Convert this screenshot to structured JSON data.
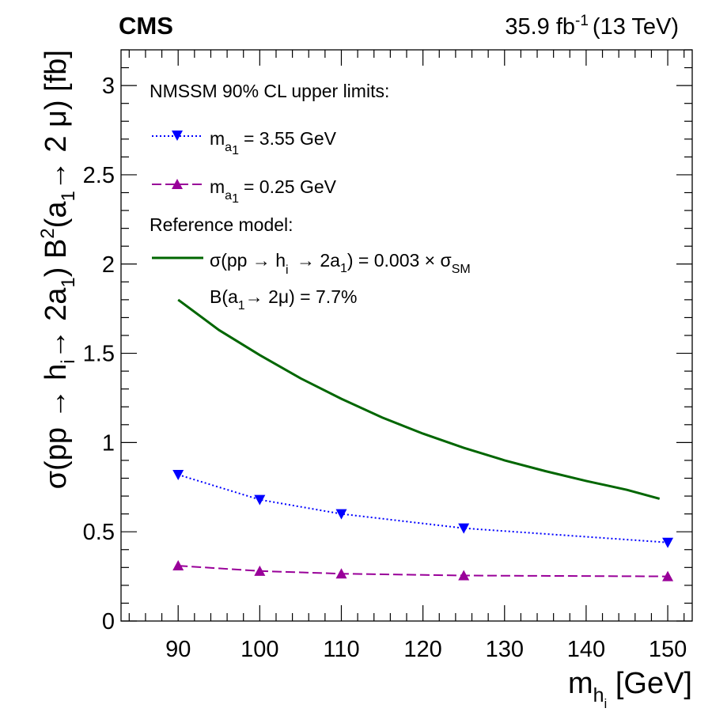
{
  "header": {
    "experiment": "CMS",
    "luminosity": "35.9 fb",
    "luminosity_exponent": "-1",
    "energy": "(13 TeV)"
  },
  "legend": {
    "limits_heading": "NMSSM 90% CL upper limits:",
    "entry_1": {
      "symbol": "m",
      "subscript": "a",
      "subsubscript": "1",
      "value": "= 3.55 GeV"
    },
    "entry_2": {
      "symbol": "m",
      "subscript": "a",
      "subsubscript": "1",
      "value": "= 0.25 GeV"
    },
    "reference_heading": "Reference model:",
    "reference_line_1": {
      "lead": "σ(pp → h",
      "sub_i": "i",
      "mid": " → 2a",
      "sub_1": "1",
      "tail": ") = 0.003 × σ",
      "sub_sm": "SM"
    },
    "reference_line_2": {
      "lead": "B(a",
      "sub_1": "1",
      "tail": "→ 2μ) = 7.7%"
    }
  },
  "axes": {
    "x_title": {
      "lead": "m",
      "sub": "h",
      "subsub": "i",
      "tail": " [GeV]"
    },
    "y_title": {
      "p1": "σ(pp → h",
      "s1": "i",
      "p2": "→ 2a",
      "s2": "1",
      "p3": ")  B",
      "sup": "2",
      "p4": "(a",
      "s3": "1",
      "p5": "→ 2 μ) [fb]"
    }
  },
  "colors": {
    "series_3p55": "#0000ff",
    "series_0p25": "#990099",
    "reference": "#006600",
    "axis": "#000000",
    "background": "#ffffff"
  },
  "chart_data": {
    "type": "line",
    "xlabel": "m_{h_i} [GeV]",
    "ylabel": "σ(pp → h_i → 2a_1) B^2(a_1 → 2 μ) [fb]",
    "xlim": [
      83,
      153
    ],
    "ylim": [
      0,
      3.2
    ],
    "x_ticks": [
      "90",
      "100",
      "110",
      "120",
      "130",
      "140",
      "150"
    ],
    "y_ticks": [
      "0",
      "0.5",
      "1",
      "1.5",
      "2",
      "2.5",
      "3"
    ],
    "grid": false,
    "legend_position": "top-left",
    "series": [
      {
        "name": "m_{a_1} = 3.55 GeV",
        "style": "dotted",
        "marker": "triangle-down",
        "color": "#0000ff",
        "points": [
          [
            90,
            0.82
          ],
          [
            100,
            0.68
          ],
          [
            110,
            0.6
          ],
          [
            125,
            0.52
          ],
          [
            150,
            0.44
          ]
        ]
      },
      {
        "name": "m_{a_1} = 0.25 GeV",
        "style": "dashed",
        "marker": "triangle-up",
        "color": "#990099",
        "points": [
          [
            90,
            0.31
          ],
          [
            100,
            0.28
          ],
          [
            110,
            0.265
          ],
          [
            125,
            0.255
          ],
          [
            150,
            0.25
          ]
        ]
      },
      {
        "name": "σ(pp → h_i → 2a_1) = 0.003 × σ_SM, B(a_1 → 2μ) = 7.7%",
        "style": "solid",
        "marker": "none",
        "color": "#006600",
        "points": [
          [
            90,
            1.8
          ],
          [
            95,
            1.63
          ],
          [
            100,
            1.49
          ],
          [
            105,
            1.36
          ],
          [
            110,
            1.245
          ],
          [
            115,
            1.14
          ],
          [
            120,
            1.05
          ],
          [
            125,
            0.97
          ],
          [
            130,
            0.9
          ],
          [
            135,
            0.84
          ],
          [
            140,
            0.785
          ],
          [
            145,
            0.735
          ],
          [
            149,
            0.685
          ]
        ]
      }
    ]
  }
}
